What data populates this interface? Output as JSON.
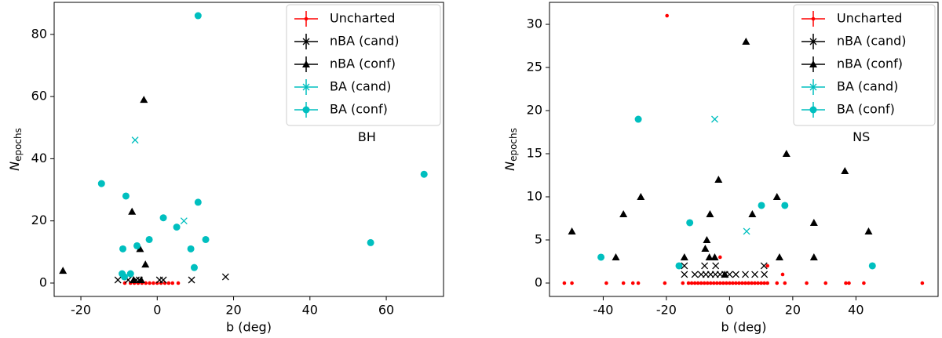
{
  "chart_data": [
    {
      "type": "scatter",
      "annotation": "BH",
      "xlabel": "b (deg)",
      "ylabel": "N",
      "ylabel_subscript": "epochs",
      "xlim": [
        -27,
        75
      ],
      "xticks": [
        -20,
        0,
        20,
        40,
        60
      ],
      "ylim": [
        -4.3,
        90.3
      ],
      "yticks": [
        0,
        20,
        40,
        60,
        80
      ],
      "legend": "upper right",
      "series": [
        {
          "name": "Uncharted",
          "color": "#ff0000",
          "marker": "dot",
          "x": [
            -8.5,
            -7,
            -6,
            -5,
            -4,
            -3,
            -2,
            -1,
            0,
            1,
            2,
            3,
            4,
            5.5
          ],
          "values": [
            0,
            0,
            0,
            0,
            0,
            0,
            0,
            0,
            0,
            0,
            0,
            0,
            0,
            0
          ]
        },
        {
          "name": "nBA (cand)",
          "color": "#000000",
          "marker": "x",
          "x": [
            -10.3,
            -7.6,
            -5.5,
            -4.7,
            0.6,
            1.6,
            9,
            17.9
          ],
          "values": [
            1,
            1,
            1,
            1,
            1,
            1,
            1,
            2
          ]
        },
        {
          "name": "nBA (conf)",
          "color": "#000000",
          "marker": "triangle",
          "x": [
            -24.7,
            -3.5,
            -6.6,
            -4.5,
            -3.1,
            -6.2,
            -4.2
          ],
          "values": [
            4,
            59,
            23,
            11,
            6,
            1,
            1
          ]
        },
        {
          "name": "BA (cand)",
          "color": "#00bfbf",
          "marker": "x",
          "x": [
            -5.8,
            7
          ],
          "values": [
            46,
            20
          ]
        },
        {
          "name": "BA (conf)",
          "color": "#00bfbf",
          "marker": "circle",
          "x": [
            10.7,
            69.9,
            55.9,
            -14.6,
            -8.2,
            -5.3,
            -2.1,
            1.6,
            5.1,
            10.7,
            12.7,
            8.8,
            9.7,
            -9,
            -9.2,
            -7,
            -8.6
          ],
          "values": [
            86,
            35,
            13,
            32,
            28,
            12,
            14,
            21,
            18,
            26,
            14,
            11,
            5,
            11,
            3,
            3,
            2
          ]
        }
      ]
    },
    {
      "type": "scatter",
      "annotation": "NS",
      "xlabel": "b (deg)",
      "ylabel": "N",
      "ylabel_subscript": "epochs",
      "xlim": [
        -57,
        66
      ],
      "xticks": [
        -40,
        -20,
        0,
        20,
        40
      ],
      "ylim": [
        -1.55,
        32.55
      ],
      "yticks": [
        0,
        5,
        10,
        15,
        20,
        25,
        30
      ],
      "legend": "upper right",
      "series": [
        {
          "name": "Uncharted",
          "color": "#ff0000",
          "marker": "dot",
          "x": [
            -52.3,
            -49.9,
            -39,
            -33.6,
            -30.6,
            -28.9,
            -20.5,
            -14.8,
            -13,
            -12,
            -11,
            -10,
            -9,
            -8,
            -7,
            -6,
            -5,
            -4,
            -3,
            -2,
            -1,
            0,
            1,
            2,
            3,
            4,
            5,
            6,
            7,
            8,
            9,
            10,
            11,
            12,
            15,
            17.5,
            24.4,
            30.4,
            36.8,
            37.8,
            42.5,
            61,
            -19.8,
            -3,
            12,
            16.8
          ],
          "values": [
            0,
            0,
            0,
            0,
            0,
            0,
            0,
            0,
            0,
            0,
            0,
            0,
            0,
            0,
            0,
            0,
            0,
            0,
            0,
            0,
            0,
            0,
            0,
            0,
            0,
            0,
            0,
            0,
            0,
            0,
            0,
            0,
            0,
            0,
            0,
            0,
            0,
            0,
            0,
            0,
            0,
            0,
            31,
            3,
            2,
            1
          ]
        },
        {
          "name": "nBA (cand)",
          "color": "#000000",
          "marker": "x",
          "x": [
            -14.3,
            -7.9,
            -4.4,
            10.9,
            -14.3,
            -11,
            -9,
            -7.5,
            -6,
            -4.5,
            -3,
            -1.5,
            0,
            2,
            5,
            8,
            11
          ],
          "values": [
            2,
            2,
            2,
            2,
            1,
            1,
            1,
            1,
            1,
            1,
            1,
            1,
            1,
            1,
            1,
            1,
            1
          ]
        },
        {
          "name": "nBA (conf)",
          "color": "#000000",
          "marker": "triangle",
          "x": [
            -49.9,
            -36,
            -28.1,
            -33.6,
            5.2,
            18,
            36.5,
            -3.5,
            15,
            -6.2,
            7.2,
            26.7,
            44,
            -7.2,
            -7.7,
            -14.3,
            -6.4,
            -4.7,
            15.8,
            26.7,
            -1.5
          ],
          "values": [
            6,
            3,
            10,
            8,
            28,
            15,
            13,
            12,
            10,
            8,
            8,
            7,
            6,
            5,
            4,
            3,
            3,
            3,
            3,
            3,
            1
          ]
        },
        {
          "name": "BA (cand)",
          "color": "#00bfbf",
          "marker": "x",
          "x": [
            -4.7,
            5.4
          ],
          "values": [
            19,
            6
          ]
        },
        {
          "name": "BA (conf)",
          "color": "#00bfbf",
          "marker": "circle",
          "x": [
            -28.9,
            -12.6,
            10.1,
            17.5,
            -40.7,
            -16,
            45.2
          ],
          "values": [
            19,
            7,
            9,
            9,
            3,
            2,
            2
          ]
        }
      ]
    }
  ]
}
